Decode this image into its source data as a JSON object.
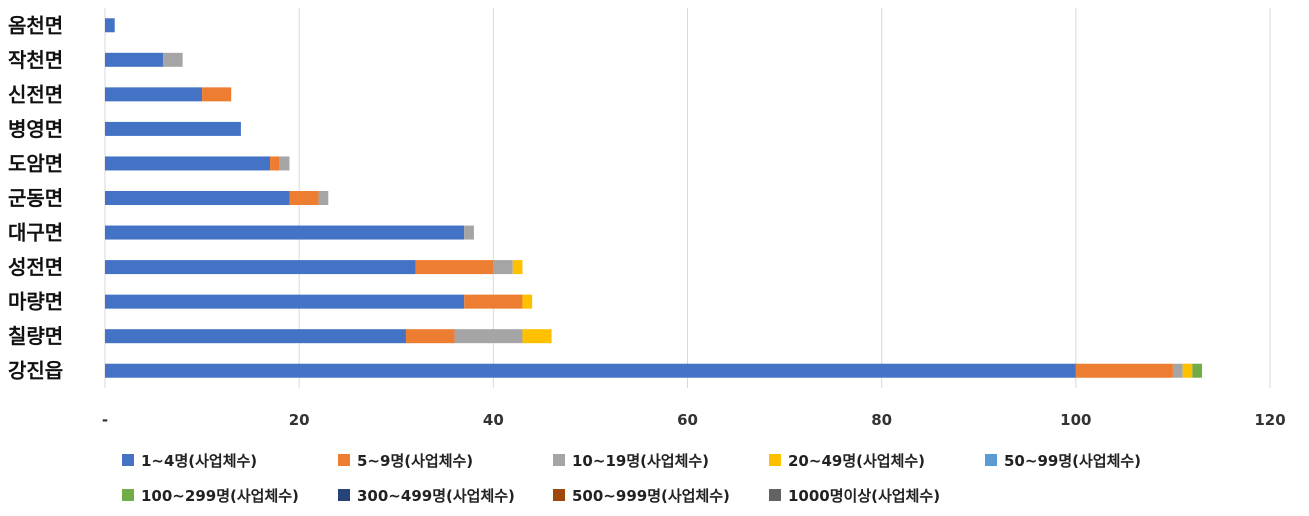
{
  "chart_data": {
    "type": "bar",
    "orientation": "horizontal",
    "stacked": true,
    "title": "",
    "xlabel": "",
    "ylabel": "",
    "xlim": [
      0,
      120
    ],
    "x_ticks": [
      0,
      20,
      40,
      60,
      80,
      100,
      120
    ],
    "x_tick_labels": [
      "-",
      "20",
      "40",
      "60",
      "80",
      "100",
      "120"
    ],
    "grid": "vertical",
    "legend_position": "bottom",
    "categories": [
      "옴천면",
      "작천면",
      "신전면",
      "병영면",
      "도암면",
      "군동면",
      "대구면",
      "성전면",
      "마량면",
      "칠량면",
      "강진읍"
    ],
    "series": [
      {
        "name": "1~4명(사업체수)",
        "color": "#4472C4",
        "values": [
          1,
          6,
          10,
          14,
          17,
          19,
          37,
          32,
          37,
          31,
          100
        ]
      },
      {
        "name": "5~9명(사업체수)",
        "color": "#ED7D31",
        "values": [
          0,
          0,
          3,
          0,
          1,
          3,
          0,
          8,
          6,
          5,
          10
        ]
      },
      {
        "name": "10~19명(사업체수)",
        "color": "#A5A5A5",
        "values": [
          0,
          2,
          0,
          0,
          1,
          1,
          1,
          2,
          0,
          7,
          1
        ]
      },
      {
        "name": "20~49명(사업체수)",
        "color": "#FFC000",
        "values": [
          0,
          0,
          0,
          0,
          0,
          0,
          0,
          1,
          1,
          3,
          1
        ]
      },
      {
        "name": "50~99명(사업체수)",
        "color": "#5B9BD5",
        "values": [
          0,
          0,
          0,
          0,
          0,
          0,
          0,
          0,
          0,
          0,
          0
        ]
      },
      {
        "name": "100~299명(사업체수)",
        "color": "#70AD47",
        "values": [
          0,
          0,
          0,
          0,
          0,
          0,
          0,
          0,
          0,
          0,
          1
        ]
      },
      {
        "name": "300~499명(사업체수)",
        "color": "#264478",
        "values": [
          0,
          0,
          0,
          0,
          0,
          0,
          0,
          0,
          0,
          0,
          0
        ]
      },
      {
        "name": "500~999명(사업체수)",
        "color": "#9E480E",
        "values": [
          0,
          0,
          0,
          0,
          0,
          0,
          0,
          0,
          0,
          0,
          0
        ]
      },
      {
        "name": "1000명이상(사업체수)",
        "color": "#636363",
        "values": [
          0,
          0,
          0,
          0,
          0,
          0,
          0,
          0,
          0,
          0,
          0
        ]
      }
    ]
  }
}
